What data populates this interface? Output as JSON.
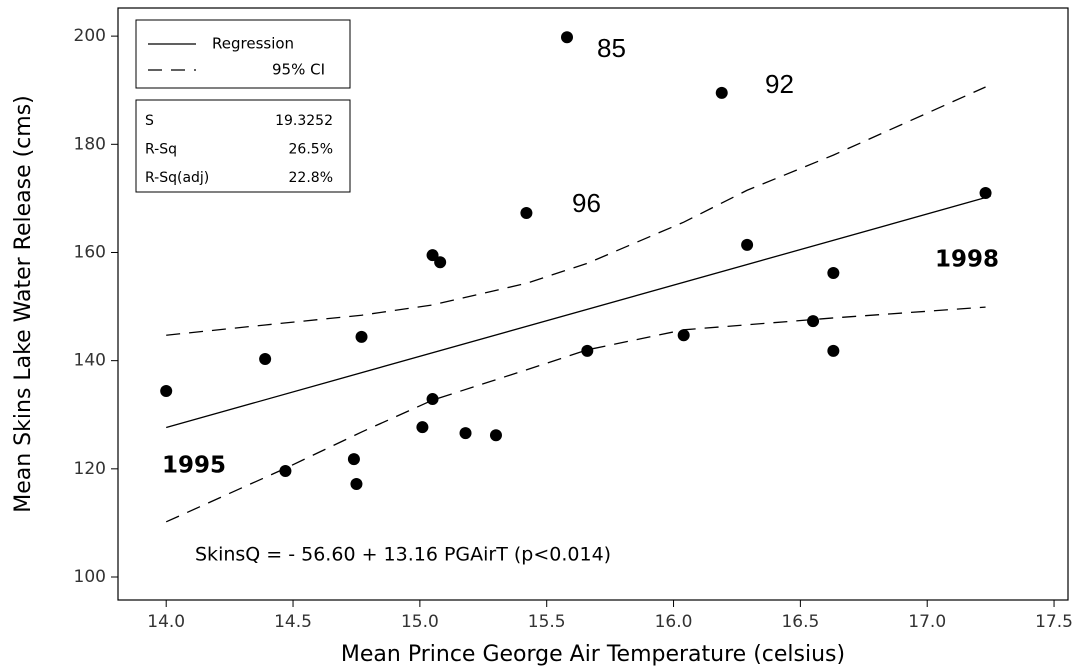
{
  "chart_data": {
    "type": "scatter",
    "x_label": "Mean Prince George Air Temperature (celsius)",
    "y_label": "Mean Skins Lake Water Release (cms)",
    "x": [
      14.0,
      14.39,
      14.47,
      14.74,
      14.75,
      14.77,
      15.01,
      15.05,
      15.08,
      15.05,
      15.18,
      15.3,
      15.42,
      15.58,
      15.66,
      16.04,
      16.19,
      16.29,
      16.55,
      16.63,
      16.63,
      17.23
    ],
    "values": [
      134.4,
      140.3,
      119.6,
      121.8,
      117.2,
      144.4,
      127.7,
      159.5,
      158.2,
      132.9,
      126.6,
      126.2,
      167.3,
      199.8,
      141.8,
      144.7,
      189.5,
      161.4,
      147.3,
      156.2,
      141.8,
      171.0
    ],
    "color": "#000000",
    "regression": {
      "name": "Regression",
      "x": [
        14.0,
        17.25
      ],
      "values": [
        127.64,
        170.41
      ]
    },
    "ci": {
      "name": "95% CI",
      "upper": {
        "x": [
          14.0,
          14.39,
          14.77,
          15.05,
          15.42,
          15.66,
          16.04,
          16.29,
          16.63,
          17.23
        ],
        "values": [
          144.7,
          146.6,
          148.4,
          150.3,
          154.3,
          158.0,
          165.6,
          171.5,
          178.0,
          190.6
        ]
      },
      "lower": {
        "x": [
          14.0,
          14.47,
          14.77,
          15.05,
          15.42,
          15.66,
          16.04,
          16.63,
          17.23
        ],
        "values": [
          110.2,
          120.1,
          126.8,
          132.7,
          138.3,
          142.0,
          145.7,
          147.9,
          149.9
        ]
      }
    },
    "stats": [
      [
        "S",
        "19.3252"
      ],
      [
        "R-Sq",
        "26.5%"
      ],
      [
        "R-Sq(adj)",
        "22.8%"
      ]
    ],
    "annotations": [
      "85",
      "92",
      "96",
      "1995",
      "1998",
      "SkinsQ =  - 56.60 + 13.16 PGAirT  (p<0.014)"
    ],
    "xlim": [
      13.81,
      17.555
    ],
    "ylim": [
      95.75,
      205.2
    ],
    "xticks": [
      {
        "value": 14,
        "label": "14.0"
      },
      14.5,
      {
        "value": 15,
        "label": "15.0"
      },
      15.5,
      {
        "value": 16,
        "label": "16.0"
      },
      16.5,
      {
        "value": 17,
        "label": "17.0"
      },
      17.5
    ],
    "yticks": [
      100,
      120,
      140,
      160,
      180,
      200
    ],
    "grid": false
  }
}
